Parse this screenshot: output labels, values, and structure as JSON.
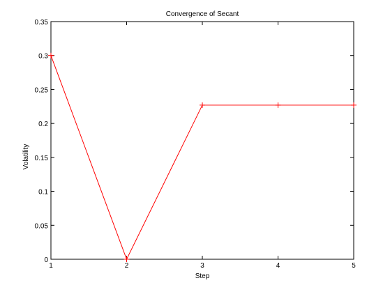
{
  "chart_data": {
    "type": "line",
    "title": "Convergence of Secant",
    "xlabel": "Step",
    "ylabel": "Volatility",
    "xlim": [
      1,
      5
    ],
    "ylim": [
      0,
      0.35
    ],
    "xticks": [
      "1",
      "2",
      "3",
      "4",
      "5"
    ],
    "yticks": [
      "0",
      "0.05",
      "0.1",
      "0.15",
      "0.2",
      "0.25",
      "0.3",
      "0.35"
    ],
    "grid": false,
    "series": [
      {
        "x": [
          1,
          2,
          3,
          4,
          5
        ],
        "values": [
          0.3,
          0.0,
          0.227,
          0.227,
          0.227
        ],
        "color": "#ff0000",
        "marker": "plus"
      }
    ]
  }
}
